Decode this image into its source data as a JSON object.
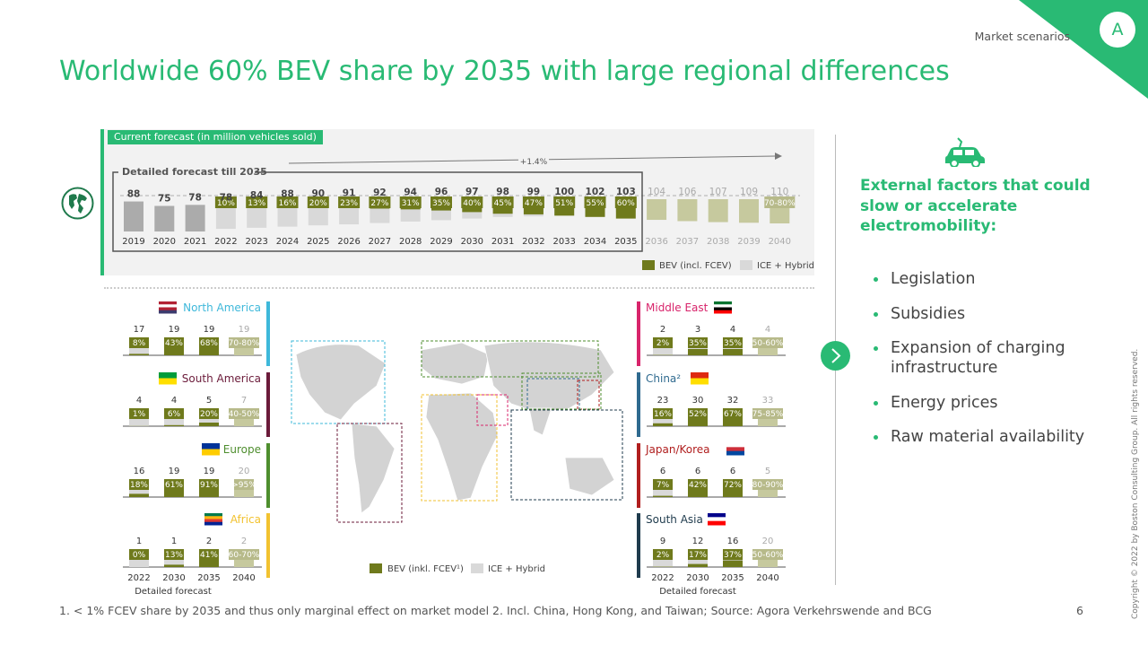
{
  "header": {
    "section_label": "Market scenarios",
    "badge": "A",
    "title": "Worldwide 60% BEV share by 2035 with large regional differences"
  },
  "colors": {
    "accent": "#29BA74",
    "bev": "#6F7A1C",
    "ice": "#D9D9D9",
    "future_bev": "#C6C99E",
    "future_ice": "#E6E6E6"
  },
  "chart_data": [
    {
      "type": "bar",
      "panel_label": "Current forecast (in million vehicles sold)",
      "box_label": "Detailed forecast till 2035",
      "growth_label": "+1.4%",
      "categories": [
        "2019",
        "2020",
        "2021",
        "2022",
        "2023",
        "2024",
        "2025",
        "2026",
        "2027",
        "2028",
        "2029",
        "2030",
        "2031",
        "2032",
        "2033",
        "2034",
        "2035",
        "2036",
        "2037",
        "2038",
        "2039",
        "2040"
      ],
      "totals": [
        88,
        75,
        78,
        78,
        84,
        88,
        90,
        91,
        92,
        94,
        96,
        97,
        98,
        99,
        100,
        102,
        103,
        104,
        106,
        107,
        109,
        110
      ],
      "bev_share_labels": [
        "",
        "",
        "",
        "10%",
        "13%",
        "16%",
        "20%",
        "23%",
        "27%",
        "31%",
        "35%",
        "40%",
        "45%",
        "47%",
        "51%",
        "55%",
        "60%",
        "",
        "",
        "",
        "",
        "70-80%"
      ],
      "bev_share_values": [
        0,
        0,
        0,
        10,
        13,
        16,
        20,
        23,
        27,
        31,
        35,
        40,
        45,
        47,
        51,
        55,
        60,
        64,
        68,
        71,
        73,
        75
      ],
      "legend": [
        {
          "name": "BEV (incl. FCEV)",
          "color": "#6F7A1C"
        },
        {
          "name": "ICE + Hybrid",
          "color": "#D9D9D9"
        }
      ]
    },
    {
      "type": "bar",
      "title": "Regional BEV share",
      "categories": [
        "2022",
        "2030",
        "2035",
        "2040"
      ],
      "xlabel": "Detailed forecast",
      "legend": [
        {
          "name": "BEV (inkl. FCEV¹)",
          "color": "#6F7A1C"
        },
        {
          "name": "ICE + Hybrid",
          "color": "#D9D9D9"
        }
      ],
      "regions": [
        {
          "name": "North America",
          "side": "left",
          "color": "#3EB8DA",
          "totals": [
            "17",
            "19",
            "19",
            "19"
          ],
          "shares": [
            "8%",
            "43%",
            "68%",
            "70-80%"
          ],
          "share_values": [
            8,
            43,
            68,
            75
          ]
        },
        {
          "name": "South America",
          "side": "left",
          "color": "#6B1B3A",
          "totals": [
            "4",
            "4",
            "5",
            "7"
          ],
          "shares": [
            "1%",
            "6%",
            "20%",
            "40-50%"
          ],
          "share_values": [
            1,
            6,
            20,
            45
          ]
        },
        {
          "name": "Europe",
          "side": "left",
          "color": "#4E8E2E",
          "totals": [
            "16",
            "19",
            "19",
            "20"
          ],
          "shares": [
            "18%",
            "61%",
            "91%",
            ">95%"
          ],
          "share_values": [
            18,
            61,
            91,
            96
          ]
        },
        {
          "name": "Africa",
          "side": "left",
          "color": "#F2C230",
          "totals": [
            "1",
            "1",
            "2",
            "2"
          ],
          "shares": [
            "0%",
            "13%",
            "41%",
            "60-70%"
          ],
          "share_values": [
            0,
            13,
            41,
            65
          ]
        },
        {
          "name": "Middle East",
          "side": "right",
          "color": "#D8246B",
          "totals": [
            "2",
            "3",
            "4",
            "4"
          ],
          "shares": [
            "2%",
            "35%",
            "35%",
            "50-60%"
          ],
          "share_values": [
            2,
            35,
            35,
            55
          ]
        },
        {
          "name": "China²",
          "side": "right",
          "color": "#2F6A8F",
          "totals": [
            "23",
            "30",
            "32",
            "33"
          ],
          "shares": [
            "16%",
            "52%",
            "67%",
            "75-85%"
          ],
          "share_values": [
            16,
            52,
            67,
            80
          ]
        },
        {
          "name": "Japan/Korea",
          "side": "right",
          "color": "#B01E1E",
          "totals": [
            "6",
            "6",
            "6",
            "5"
          ],
          "shares": [
            "7%",
            "42%",
            "72%",
            "80-90%"
          ],
          "share_values": [
            7,
            42,
            72,
            85
          ]
        },
        {
          "name": "South Asia",
          "side": "right",
          "color": "#1F3B4D",
          "totals": [
            "9",
            "12",
            "16",
            "20"
          ],
          "shares": [
            "2%",
            "17%",
            "37%",
            "50-60%"
          ],
          "share_values": [
            2,
            17,
            37,
            55
          ]
        }
      ]
    }
  ],
  "icons": {
    "globe": "globe-icon",
    "car": "electric-car-icon",
    "arrow": "chevron-right-icon"
  },
  "side": {
    "title": "External factors that could slow or accelerate electromobility:",
    "factors": [
      "Legislation",
      "Subsidies",
      "Expansion of charging infrastructure",
      "Energy prices",
      "Raw material availability"
    ]
  },
  "footer": {
    "footnote": "1. < 1% FCEV share by 2035 and thus only marginal effect on market model  2. Incl. China, Hong Kong, and Taiwan; Source: Agora Verkehrswende and BCG",
    "page_number": "6",
    "copyright": "Copyright © 2022 by Boston Consulting Group. All rights reserved."
  }
}
